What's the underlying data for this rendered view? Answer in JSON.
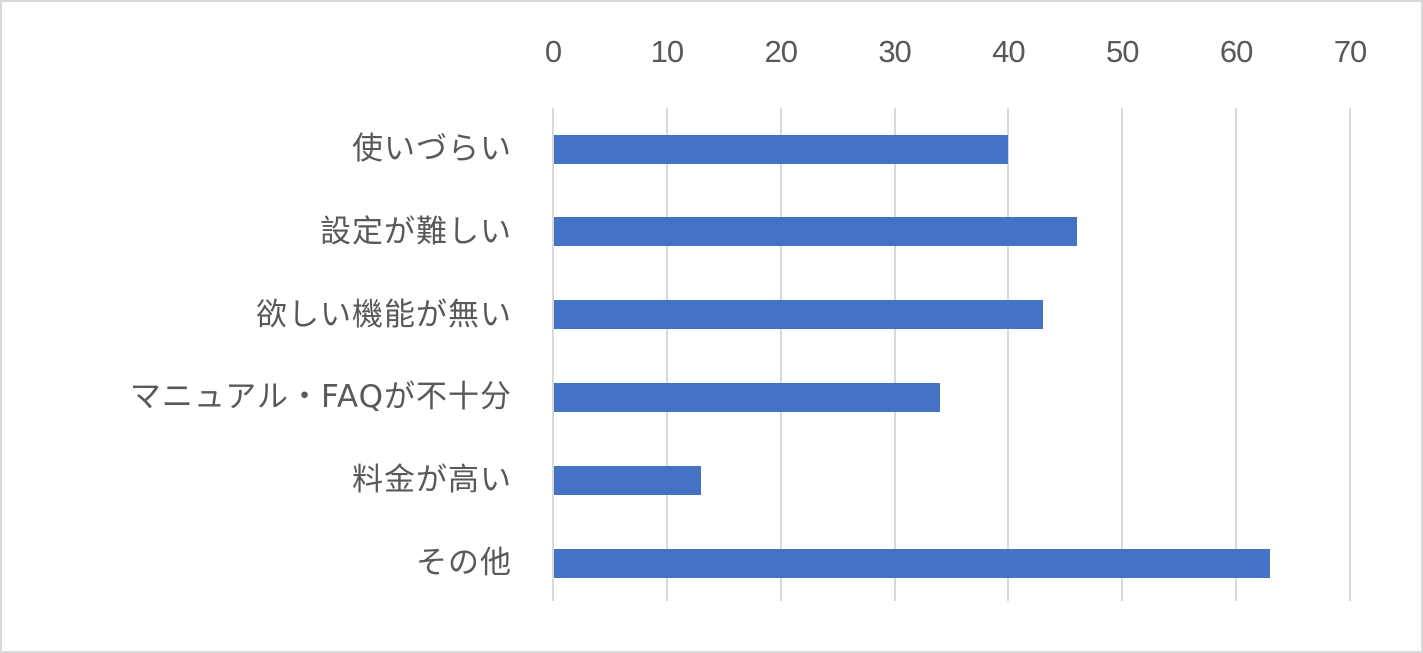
{
  "chart_data": {
    "type": "bar",
    "orientation": "horizontal",
    "title": "",
    "xlabel": "",
    "ylabel": "",
    "categories": [
      "使いづらい",
      "設定が難しい",
      "欲しい機能が無い",
      "マニュアル・FAQが不十分",
      "料金が高い",
      "その他"
    ],
    "values": [
      40,
      46,
      43,
      34,
      13,
      63
    ],
    "xlim": [
      0,
      70
    ],
    "x_ticks": [
      "0",
      "10",
      "20",
      "30",
      "40",
      "50",
      "60",
      "70"
    ],
    "x_axis_position": "top",
    "grid": true,
    "legend": null,
    "bar_color": "#4472c4",
    "grid_color": "#d9d9d9",
    "text_color": "#595959"
  }
}
